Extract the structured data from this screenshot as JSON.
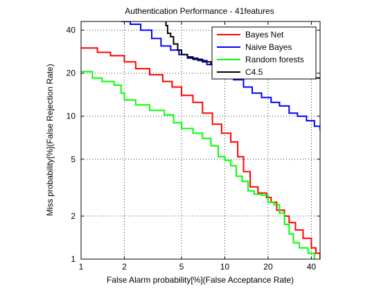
{
  "chart_data": {
    "type": "line",
    "title": "Authentication Performance - 41features",
    "xlabel": "False Alarm probability[%](False Acceptance Rate)",
    "ylabel": "Miss probability[%](False Rejection Rate)",
    "xscale": "log",
    "yscale": "log",
    "xlim": [
      1,
      46
    ],
    "ylim": [
      1,
      46
    ],
    "xticks": [
      1,
      2,
      5,
      10,
      20,
      40
    ],
    "yticks": [
      1,
      2,
      5,
      10,
      20,
      40
    ],
    "grid": true,
    "legend_position": "top-right",
    "series": [
      {
        "name": "Bayes Net",
        "color": "#ff0000",
        "points": [
          [
            1,
            30
          ],
          [
            1.3,
            28
          ],
          [
            1.6,
            26.5
          ],
          [
            2,
            24
          ],
          [
            2.4,
            21.5
          ],
          [
            3,
            19.5
          ],
          [
            3.7,
            17.5
          ],
          [
            4.3,
            16
          ],
          [
            5,
            14
          ],
          [
            6,
            12.5
          ],
          [
            7,
            10.5
          ],
          [
            8.2,
            8.8
          ],
          [
            9.5,
            7.6
          ],
          [
            11,
            6.6
          ],
          [
            12.3,
            5.2
          ],
          [
            13.5,
            4.1
          ],
          [
            15,
            3.2
          ],
          [
            17,
            2.9
          ],
          [
            19.5,
            2.7
          ],
          [
            21,
            2.5
          ],
          [
            23,
            2.2
          ],
          [
            26,
            2
          ],
          [
            28,
            1.8
          ],
          [
            31,
            1.6
          ],
          [
            35,
            1.4
          ],
          [
            40,
            1.2
          ],
          [
            43,
            1.1
          ],
          [
            46,
            1
          ]
        ]
      },
      {
        "name": "Naive Bayes",
        "color": "#0000ff",
        "points": [
          [
            1.9,
            46
          ],
          [
            2.2,
            44
          ],
          [
            2.6,
            40
          ],
          [
            3.1,
            35
          ],
          [
            3.6,
            31
          ],
          [
            4.2,
            29
          ],
          [
            4.8,
            27
          ],
          [
            5.5,
            25.5
          ],
          [
            6.5,
            24.5
          ],
          [
            7.5,
            23
          ],
          [
            8.8,
            21.5
          ],
          [
            10,
            20
          ],
          [
            11.5,
            18
          ],
          [
            13.5,
            16
          ],
          [
            15.5,
            14.5
          ],
          [
            18,
            13.5
          ],
          [
            21,
            12.5
          ],
          [
            24,
            11.8
          ],
          [
            28,
            10.5
          ],
          [
            32,
            10
          ],
          [
            37,
            9.3
          ],
          [
            42,
            8.5
          ],
          [
            46,
            8
          ]
        ]
      },
      {
        "name": "Random forests",
        "color": "#00ff00",
        "points": [
          [
            1,
            20.5
          ],
          [
            1.2,
            18.5
          ],
          [
            1.4,
            17.5
          ],
          [
            1.7,
            16.5
          ],
          [
            1.9,
            14.5
          ],
          [
            2,
            13
          ],
          [
            2.4,
            12
          ],
          [
            3,
            11
          ],
          [
            3.8,
            10.2
          ],
          [
            4.4,
            9
          ],
          [
            5,
            8.2
          ],
          [
            6,
            7.6
          ],
          [
            7,
            7
          ],
          [
            8,
            6.2
          ],
          [
            9,
            5.2
          ],
          [
            10,
            4.9
          ],
          [
            11,
            4.5
          ],
          [
            12,
            3.8
          ],
          [
            13.2,
            3.5
          ],
          [
            14.5,
            3
          ],
          [
            16,
            2.85
          ],
          [
            18,
            2.8
          ],
          [
            20,
            2.5
          ],
          [
            22,
            2.4
          ],
          [
            24,
            2.1
          ],
          [
            26,
            1.75
          ],
          [
            28,
            1.5
          ],
          [
            30,
            1.3
          ],
          [
            33,
            1.2
          ],
          [
            38,
            1.1
          ],
          [
            42,
            1
          ]
        ]
      },
      {
        "name": "C4.5",
        "color": "#000000",
        "points": [
          [
            3.9,
            46
          ],
          [
            3.9,
            43
          ],
          [
            4,
            38
          ],
          [
            4.2,
            36
          ],
          [
            4.4,
            32
          ],
          [
            4.7,
            29
          ],
          [
            5,
            27
          ],
          [
            5.5,
            26
          ],
          [
            6,
            25
          ],
          [
            7,
            24
          ],
          [
            8,
            23
          ],
          [
            9,
            22
          ],
          [
            10,
            21.5
          ],
          [
            12,
            21
          ],
          [
            14,
            20.5
          ],
          [
            17,
            20
          ],
          [
            20,
            19
          ],
          [
            24,
            19
          ],
          [
            28,
            18.8
          ],
          [
            34,
            18.6
          ],
          [
            40,
            18.5
          ],
          [
            46,
            18.5
          ]
        ]
      }
    ]
  }
}
